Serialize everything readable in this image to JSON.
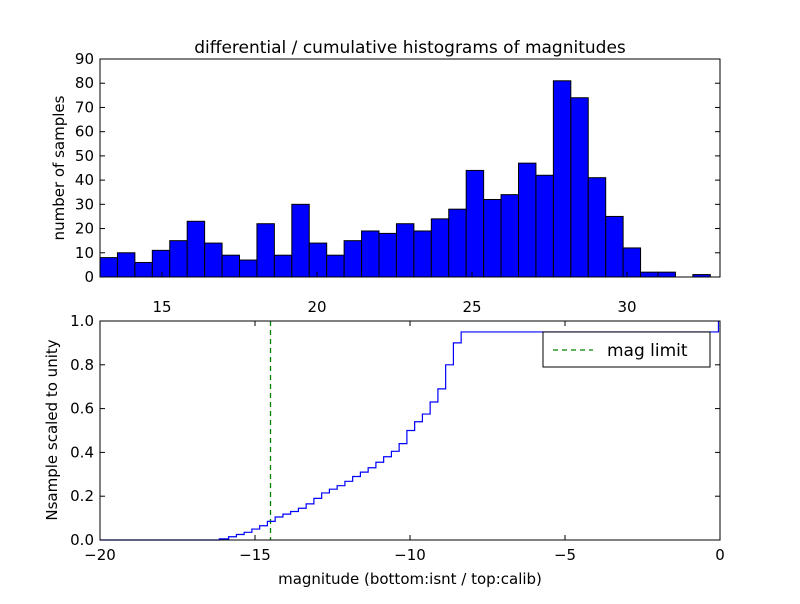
{
  "chart_data": [
    {
      "type": "bar",
      "title": "differential / cumulative histograms of magnitudes",
      "ylabel": "number of samples",
      "xlabel": "",
      "xlim": [
        13.0,
        33.0
      ],
      "ylim": [
        0,
        90
      ],
      "bin_start": 13.0,
      "bin_width": 0.5625,
      "values": [
        8,
        10,
        6,
        11,
        15,
        23,
        14,
        9,
        7,
        22,
        9,
        30,
        14,
        9,
        15,
        19,
        18,
        22,
        19,
        24,
        28,
        44,
        32,
        34,
        47,
        42,
        81,
        74,
        41,
        25,
        12,
        2,
        2,
        0,
        1
      ],
      "bar_color": "#0000ff",
      "yticks": [
        0,
        10,
        20,
        30,
        40,
        50,
        60,
        70,
        80,
        90
      ],
      "xticks": [
        15,
        20,
        25,
        30
      ],
      "xtick_position": "top of lower panel"
    },
    {
      "type": "line",
      "style": "step",
      "ylabel": "Nsample scaled to unity",
      "xlabel": "magnitude (bottom:isnt / top:calib)",
      "xlim": [
        -20,
        0
      ],
      "ylim": [
        0.0,
        1.0
      ],
      "xticks": [
        -20,
        -15,
        -10,
        -5,
        0
      ],
      "yticks": [
        0.0,
        0.2,
        0.4,
        0.6,
        0.8,
        1.0
      ],
      "series": [
        {
          "name": "cumulative",
          "color": "#0000ff",
          "x": [
            -20,
            -16.15,
            -15.85,
            -15.6,
            -15.35,
            -15.1,
            -14.85,
            -14.6,
            -14.35,
            -14.1,
            -13.85,
            -13.6,
            -13.35,
            -13.1,
            -12.85,
            -12.6,
            -12.35,
            -12.1,
            -11.85,
            -11.6,
            -11.35,
            -11.1,
            -10.85,
            -10.6,
            -10.35,
            -10.1,
            -9.85,
            -9.6,
            -9.35,
            -9.1,
            -8.85,
            -8.6,
            -8.35,
            -0.05,
            -0.05
          ],
          "y": [
            0,
            0.005,
            0.015,
            0.025,
            0.035,
            0.05,
            0.065,
            0.085,
            0.105,
            0.118,
            0.13,
            0.145,
            0.165,
            0.19,
            0.215,
            0.232,
            0.248,
            0.268,
            0.29,
            0.31,
            0.33,
            0.355,
            0.38,
            0.405,
            0.44,
            0.5,
            0.54,
            0.575,
            0.63,
            0.69,
            0.8,
            0.9,
            0.95,
            0.98,
            1.0
          ]
        },
        {
          "name": "mag limit",
          "color": "#008000",
          "style": "dashed",
          "vline_x": -14.5
        }
      ],
      "legend": {
        "position": "top-right",
        "entries": [
          "mag limit"
        ]
      }
    }
  ]
}
